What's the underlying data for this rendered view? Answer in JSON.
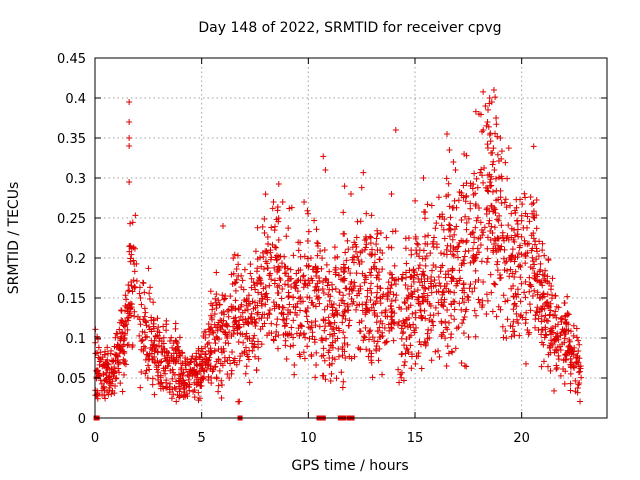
{
  "chart_data": {
    "type": "scatter",
    "title": "Day 148 of 2022, SRMTID for receiver cpvg",
    "xlabel": "GPS time / hours",
    "ylabel": "SRMTID / TECUs",
    "xlim": [
      0,
      24
    ],
    "ylim": [
      0,
      0.45
    ],
    "xticks": [
      0,
      5,
      10,
      15,
      20
    ],
    "xtick_labels": [
      "0",
      "5",
      "10",
      "15",
      "20"
    ],
    "yticks": [
      0,
      0.05,
      0.1,
      0.15,
      0.2,
      0.25,
      0.3,
      0.35,
      0.4,
      0.45
    ],
    "ytick_labels": [
      "0",
      "0.05",
      "0.1",
      "0.15",
      "0.2",
      "0.25",
      "0.3",
      "0.35",
      "0.4",
      "0.45"
    ],
    "grid": true,
    "marker": "+",
    "series_color": "#e00000",
    "envelope": {
      "description": "approximate center trend and spread of the dense point cloud (hours, TECU)",
      "x": [
        0.0,
        0.3,
        0.7,
        1.0,
        1.3,
        1.6,
        1.9,
        2.2,
        2.5,
        3.0,
        3.5,
        4.0,
        4.5,
        5.0,
        5.5,
        6.0,
        6.5,
        7.0,
        7.5,
        8.0,
        8.5,
        9.0,
        9.5,
        10.0,
        10.5,
        11.0,
        11.5,
        12.0,
        12.5,
        13.0,
        13.5,
        14.0,
        14.5,
        15.0,
        15.5,
        16.0,
        16.5,
        17.0,
        17.5,
        18.0,
        18.5,
        19.0,
        19.5,
        20.0,
        20.5,
        21.0,
        21.5,
        22.0,
        22.5,
        22.8
      ],
      "center": [
        0.07,
        0.06,
        0.045,
        0.075,
        0.09,
        0.14,
        0.2,
        0.13,
        0.1,
        0.08,
        0.07,
        0.055,
        0.05,
        0.06,
        0.1,
        0.11,
        0.12,
        0.11,
        0.14,
        0.16,
        0.18,
        0.15,
        0.13,
        0.17,
        0.15,
        0.12,
        0.15,
        0.17,
        0.18,
        0.16,
        0.15,
        0.14,
        0.12,
        0.15,
        0.16,
        0.17,
        0.18,
        0.19,
        0.21,
        0.23,
        0.28,
        0.24,
        0.2,
        0.18,
        0.2,
        0.15,
        0.11,
        0.1,
        0.07,
        0.05
      ],
      "spread": [
        0.025,
        0.02,
        0.015,
        0.02,
        0.025,
        0.04,
        0.06,
        0.04,
        0.03,
        0.025,
        0.025,
        0.02,
        0.015,
        0.02,
        0.03,
        0.035,
        0.04,
        0.035,
        0.045,
        0.045,
        0.05,
        0.045,
        0.04,
        0.05,
        0.045,
        0.04,
        0.05,
        0.05,
        0.05,
        0.045,
        0.045,
        0.045,
        0.04,
        0.05,
        0.05,
        0.05,
        0.055,
        0.055,
        0.06,
        0.06,
        0.07,
        0.06,
        0.05,
        0.05,
        0.05,
        0.04,
        0.035,
        0.03,
        0.025,
        0.02
      ]
    },
    "outliers": [
      {
        "x": 1.6,
        "y": 0.395
      },
      {
        "x": 1.6,
        "y": 0.37
      },
      {
        "x": 1.6,
        "y": 0.35
      },
      {
        "x": 1.6,
        "y": 0.34
      },
      {
        "x": 1.6,
        "y": 0.295
      },
      {
        "x": 10.7,
        "y": 0.327
      },
      {
        "x": 10.8,
        "y": 0.31
      },
      {
        "x": 14.1,
        "y": 0.36
      },
      {
        "x": 16.5,
        "y": 0.355
      },
      {
        "x": 16.8,
        "y": 0.32
      },
      {
        "x": 17.3,
        "y": 0.33
      },
      {
        "x": 18.0,
        "y": 0.38
      },
      {
        "x": 18.3,
        "y": 0.39
      },
      {
        "x": 18.5,
        "y": 0.4
      },
      {
        "x": 18.7,
        "y": 0.41
      },
      {
        "x": 18.6,
        "y": 0.395
      },
      {
        "x": 18.8,
        "y": 0.375
      },
      {
        "x": 18.4,
        "y": 0.37
      },
      {
        "x": 18.2,
        "y": 0.36
      },
      {
        "x": 19.0,
        "y": 0.35
      },
      {
        "x": 13.9,
        "y": 0.28
      },
      {
        "x": 15.4,
        "y": 0.3
      },
      {
        "x": 16.9,
        "y": 0.31
      },
      {
        "x": 12.0,
        "y": 0.28
      },
      {
        "x": 8.8,
        "y": 0.27
      },
      {
        "x": 9.8,
        "y": 0.27
      },
      {
        "x": 6.0,
        "y": 0.24
      },
      {
        "x": 20.6,
        "y": 0.25
      }
    ],
    "zero_points_x": [
      0.05,
      0.1,
      6.8,
      10.5,
      10.55,
      10.6,
      10.65,
      10.7,
      11.5,
      11.55,
      11.6,
      11.65,
      11.9,
      11.95,
      12.0,
      12.05
    ]
  }
}
